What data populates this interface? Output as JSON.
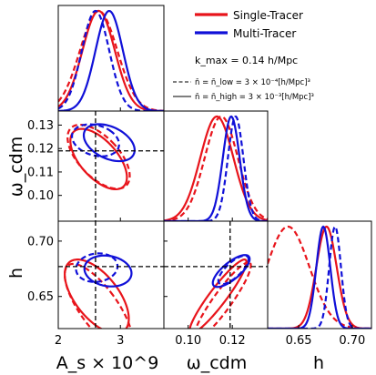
{
  "colors": {
    "single": "#e8141b",
    "multi": "#1010d8",
    "fiducial": "#000000"
  },
  "legend": {
    "single_label": "Single-Tracer",
    "multi_label": "Multi-Tracer",
    "kmax_label": "k_max = 0.14 h/Mpc",
    "nbar_low_label": "n̄ = n̄_low = 3 × 10⁻⁴[h/Mpc]³",
    "nbar_high_label": "n̄ = n̄_high = 3 × 10⁻³[h/Mpc]³",
    "placement": "upper-right"
  },
  "axes_labels": {
    "x_As": "A_s × 10^9",
    "x_omega": "ω_cdm",
    "x_h": "h",
    "y_omega": "ω_cdm",
    "y_h": "h"
  },
  "ticks": {
    "As": [
      "2",
      "3"
    ],
    "omega_x": [
      "0.10",
      "0.12"
    ],
    "h_x": [
      "0.65",
      "0.70"
    ],
    "omega_y": [
      "0.10",
      "0.11",
      "0.12",
      "0.13"
    ],
    "h_y": [
      "0.65",
      "0.70"
    ]
  },
  "chart_data": {
    "type": "corner",
    "parameters": [
      "A_s × 10^9",
      "ω_cdm",
      "h"
    ],
    "fiducial": {
      "As": 2.6,
      "omega_cdm": 0.119,
      "h": 0.677
    },
    "ranges": {
      "As": [
        2.0,
        3.7
      ],
      "omega_cdm": [
        0.089,
        0.136
      ],
      "h": [
        0.621,
        0.718
      ]
    },
    "marginals": {
      "As": [
        {
          "tracer": "Single-Tracer",
          "density": "low",
          "style": "dashed",
          "mean": 2.65,
          "sigma": 0.3
        },
        {
          "tracer": "Single-Tracer",
          "density": "high",
          "style": "solid",
          "mean": 2.65,
          "sigma": 0.26
        },
        {
          "tracer": "Multi-Tracer",
          "density": "low",
          "style": "dashed",
          "mean": 2.6,
          "sigma": 0.22
        },
        {
          "tracer": "Multi-Tracer",
          "density": "high",
          "style": "solid",
          "mean": 2.82,
          "sigma": 0.22
        }
      ],
      "omega_cdm": [
        {
          "tracer": "Single-Tracer",
          "density": "low",
          "style": "dashed",
          "mean": 0.115,
          "sigma": 0.0075
        },
        {
          "tracer": "Single-Tracer",
          "density": "high",
          "style": "solid",
          "mean": 0.113,
          "sigma": 0.0075
        },
        {
          "tracer": "Multi-Tracer",
          "density": "low",
          "style": "dashed",
          "mean": 0.1215,
          "sigma": 0.0035
        },
        {
          "tracer": "Multi-Tracer",
          "density": "high",
          "style": "solid",
          "mean": 0.1195,
          "sigma": 0.0038
        }
      ],
      "h": [
        {
          "tracer": "Single-Tracer",
          "density": "low",
          "style": "dashed",
          "mean": 0.64,
          "sigma": 0.02
        },
        {
          "tracer": "Single-Tracer",
          "density": "high",
          "style": "solid",
          "mean": 0.676,
          "sigma": 0.0095
        },
        {
          "tracer": "Multi-Tracer",
          "density": "low",
          "style": "dashed",
          "mean": 0.684,
          "sigma": 0.0055
        },
        {
          "tracer": "Multi-Tracer",
          "density": "high",
          "style": "solid",
          "mean": 0.673,
          "sigma": 0.0065
        }
      ]
    },
    "contours_68": {
      "omega_vs_As": [
        {
          "tracer": "Single-Tracer",
          "style": "dashed",
          "cx": 2.65,
          "cy": 0.1165,
          "sx": 0.33,
          "sy": 0.009,
          "rho": -0.6
        },
        {
          "tracer": "Single-Tracer",
          "style": "solid",
          "cx": 2.65,
          "cy": 0.1155,
          "sx": 0.3,
          "sy": 0.0085,
          "rho": -0.6
        },
        {
          "tracer": "Multi-Tracer",
          "style": "dashed",
          "cx": 2.6,
          "cy": 0.1235,
          "sx": 0.25,
          "sy": 0.0045,
          "rho": -0.25
        },
        {
          "tracer": "Multi-Tracer",
          "style": "solid",
          "cx": 2.82,
          "cy": 0.1225,
          "sx": 0.27,
          "sy": 0.0052,
          "rho": -0.4
        }
      ],
      "h_vs_As": [
        {
          "tracer": "Single-Tracer",
          "style": "dashed",
          "cx": 2.65,
          "cy": 0.64,
          "sx": 0.36,
          "sy": 0.026,
          "rho": -0.75
        },
        {
          "tracer": "Single-Tracer",
          "style": "solid",
          "cx": 2.62,
          "cy": 0.65,
          "sx": 0.34,
          "sy": 0.022,
          "rho": -0.6
        },
        {
          "tracer": "Multi-Tracer",
          "style": "dashed",
          "cx": 2.62,
          "cy": 0.676,
          "sx": 0.22,
          "sy": 0.0085,
          "rho": 0.1
        },
        {
          "tracer": "Multi-Tracer",
          "style": "solid",
          "cx": 2.8,
          "cy": 0.673,
          "sx": 0.25,
          "sy": 0.0092,
          "rho": -0.15
        }
      ],
      "h_vs_omega": [
        {
          "tracer": "Single-Tracer",
          "style": "dashed",
          "cx": 0.1155,
          "cy": 0.646,
          "sx": 0.0085,
          "sy": 0.023,
          "rho": 0.92
        },
        {
          "tracer": "Single-Tracer",
          "style": "solid",
          "cx": 0.1135,
          "cy": 0.65,
          "sx": 0.0085,
          "sy": 0.022,
          "rho": 0.93
        },
        {
          "tracer": "Multi-Tracer",
          "style": "dashed",
          "cx": 0.1205,
          "cy": 0.674,
          "sx": 0.0045,
          "sy": 0.0085,
          "rho": 0.75
        },
        {
          "tracer": "Multi-Tracer",
          "style": "solid",
          "cx": 0.1195,
          "cy": 0.673,
          "sx": 0.0055,
          "sy": 0.0095,
          "rho": 0.75
        }
      ]
    }
  }
}
